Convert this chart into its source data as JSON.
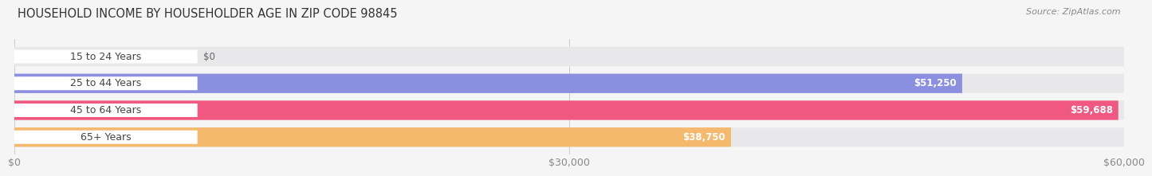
{
  "title": "HOUSEHOLD INCOME BY HOUSEHOLDER AGE IN ZIP CODE 98845",
  "source": "Source: ZipAtlas.com",
  "categories": [
    "15 to 24 Years",
    "25 to 44 Years",
    "45 to 64 Years",
    "65+ Years"
  ],
  "values": [
    0,
    51250,
    59688,
    38750
  ],
  "bar_colors": [
    "#62d0cc",
    "#8b8fe0",
    "#f05882",
    "#f5b96e"
  ],
  "value_labels": [
    "$0",
    "$51,250",
    "$59,688",
    "$38,750"
  ],
  "xlim": [
    0,
    60000
  ],
  "xticks": [
    0,
    30000,
    60000
  ],
  "xtick_labels": [
    "$0",
    "$30,000",
    "$60,000"
  ],
  "bar_height": 0.72,
  "bar_gap": 0.28,
  "figure_bg": "#f5f5f5",
  "bar_bg_color": "#e8e8ea",
  "title_fontsize": 10.5,
  "label_fontsize": 9,
  "value_fontsize": 8.5,
  "source_fontsize": 8
}
